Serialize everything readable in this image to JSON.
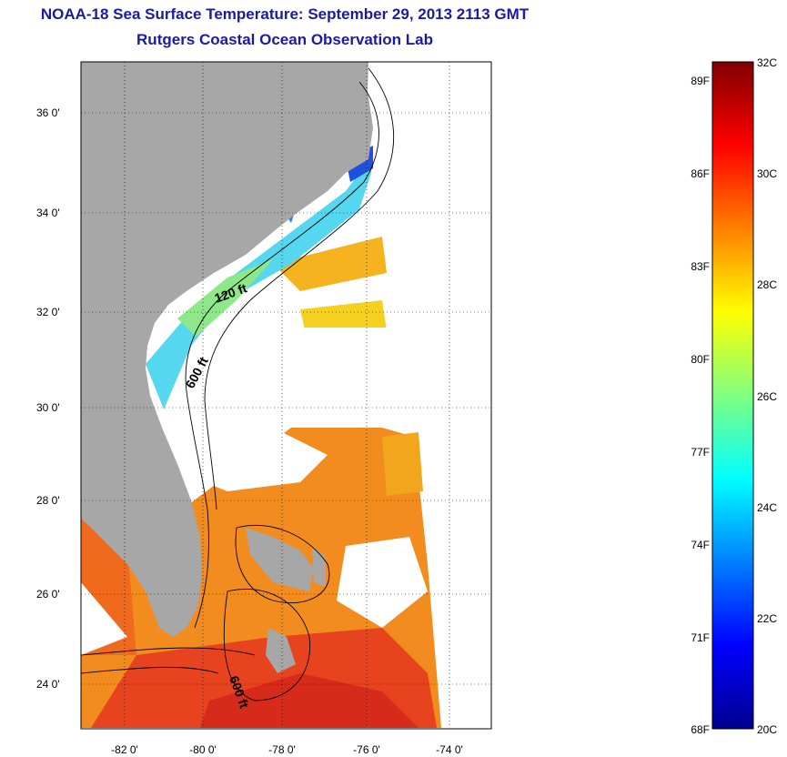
{
  "title": {
    "line1": "NOAA-18 Sea Surface Temperature:  September 29, 2013 2113 GMT",
    "line2": "Rutgers Coastal Ocean Observation Lab"
  },
  "map": {
    "lat_labels": [
      "36 0'",
      "34 0'",
      "32 0'",
      "30 0'",
      "28 0'",
      "26 0'",
      "24 0'"
    ],
    "lon_labels": [
      "-82 0'",
      "-80 0'",
      "-78 0'",
      "-76 0'",
      "-74 0'"
    ],
    "contour_labels": [
      "120 ft",
      "600 ft",
      "600 ft"
    ],
    "land_color": "#a7a7a7",
    "grid": "dotted"
  },
  "colorbar": {
    "f_labels": [
      "89F",
      "86F",
      "83F",
      "80F",
      "77F",
      "74F",
      "71F",
      "68F"
    ],
    "c_labels": [
      "32C",
      "30C",
      "28C",
      "26C",
      "24C",
      "22C",
      "20C"
    ],
    "colormap": "jet",
    "range_c": [
      20,
      32
    ]
  }
}
